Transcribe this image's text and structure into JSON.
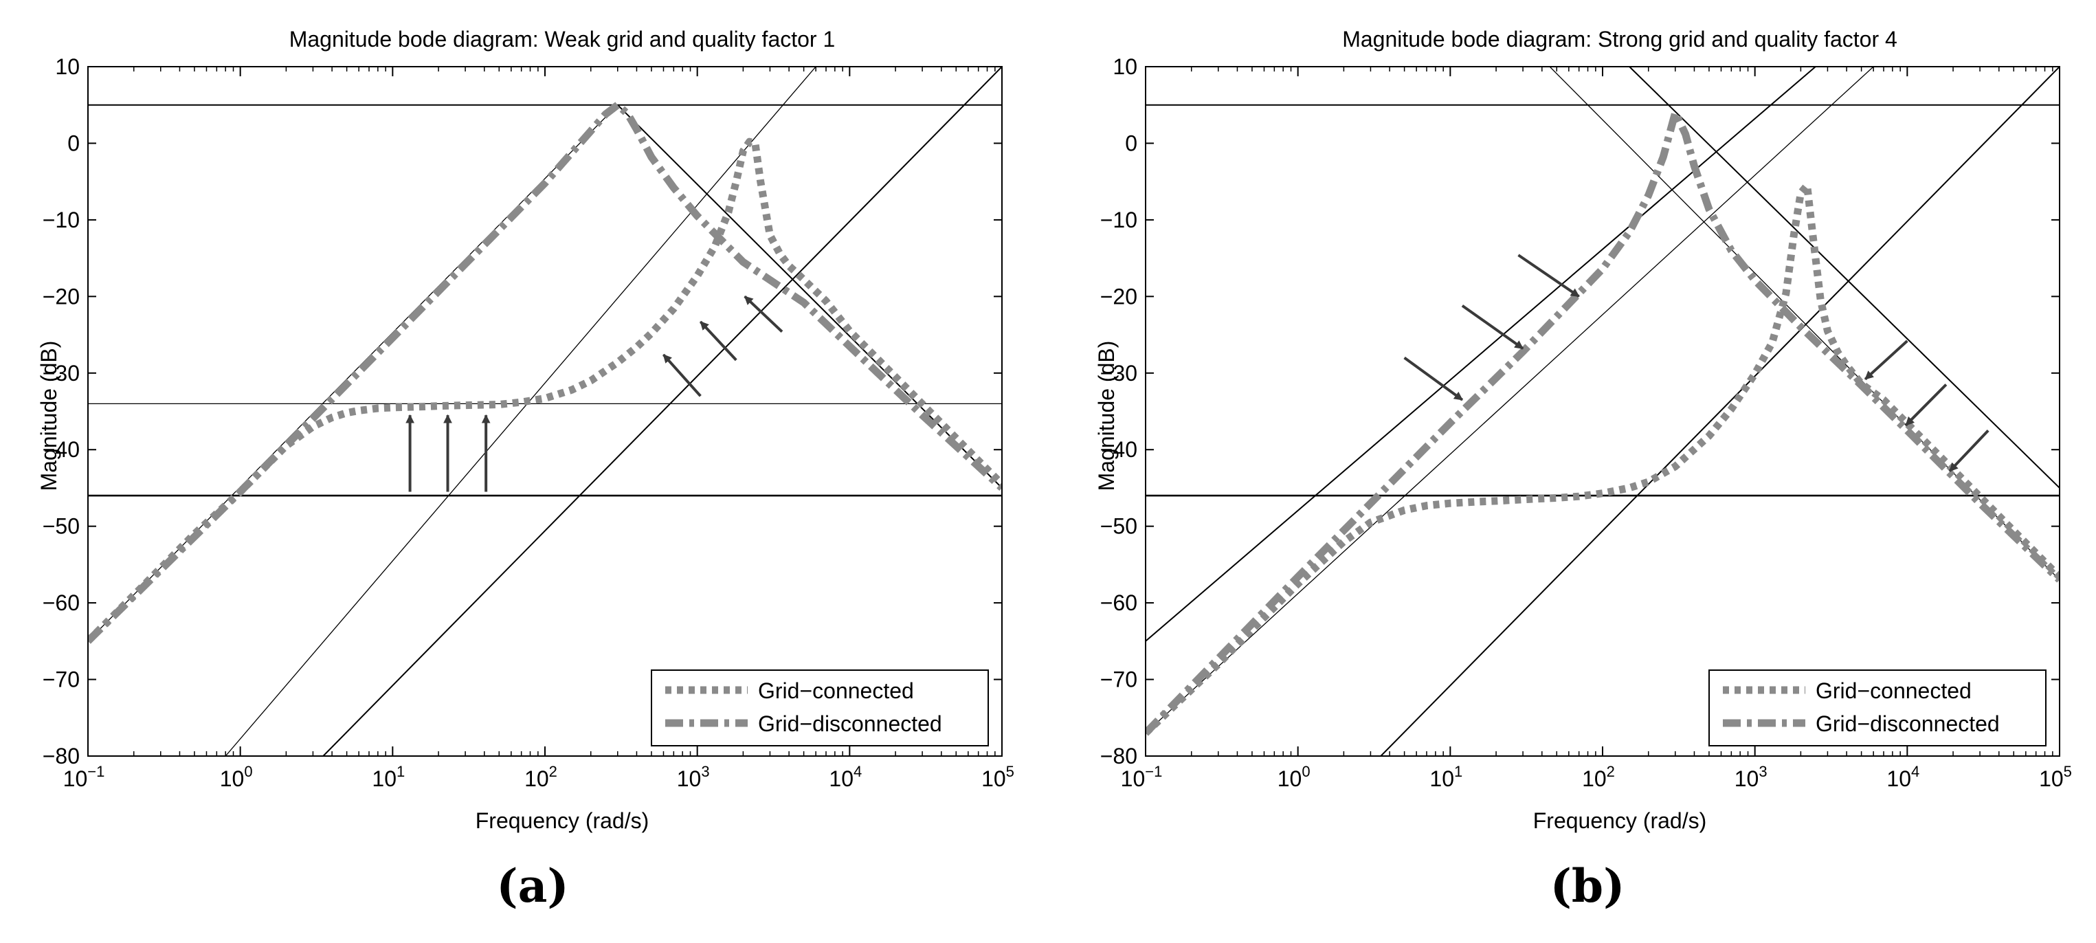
{
  "chart_data": [
    {
      "type": "line",
      "panel_label": "(a)",
      "title": "Magnitude bode diagram: Weak grid and quality factor 1",
      "xlabel": "Frequency (rad/s)",
      "ylabel": "Magnitude (dB)",
      "xscale": "log",
      "xlim": [
        0.1,
        100000
      ],
      "ylim": [
        -80,
        10
      ],
      "x_ticks": [
        {
          "base": "10",
          "exp": "−1"
        },
        {
          "base": "10",
          "exp": "0"
        },
        {
          "base": "10",
          "exp": "1"
        },
        {
          "base": "10",
          "exp": "2"
        },
        {
          "base": "10",
          "exp": "3"
        },
        {
          "base": "10",
          "exp": "4"
        },
        {
          "base": "10",
          "exp": "5"
        }
      ],
      "y_ticks": [
        "10",
        "0",
        "−10",
        "−20",
        "−30",
        "−40",
        "−50",
        "−60",
        "−70",
        "−80"
      ],
      "grid": false,
      "legend_position": "bottom-right",
      "series": [
        {
          "name": "Grid−connected",
          "style": "dotted",
          "color": "#8a8a8a",
          "x": [
            0.1,
            0.2,
            0.5,
            1,
            1.5,
            2,
            3,
            4,
            5,
            6,
            8,
            10,
            15,
            20,
            30,
            50,
            70,
            100,
            150,
            200,
            300,
            400,
            500,
            700,
            1000,
            1300,
            1600,
            1800,
            2000,
            2200,
            2400,
            2600,
            3000,
            3500,
            4000,
            5000,
            7000,
            10000,
            20000,
            50000,
            100000
          ],
          "y": [
            -65,
            -59,
            -51,
            -45.5,
            -42,
            -39.5,
            -37,
            -35.8,
            -35.2,
            -34.9,
            -34.6,
            -34.5,
            -34.4,
            -34.3,
            -34.2,
            -34.1,
            -33.8,
            -33.3,
            -32.2,
            -31,
            -28.6,
            -26.6,
            -24.8,
            -21.6,
            -17.3,
            -13.5,
            -9,
            -5,
            -1,
            0.2,
            0,
            -5,
            -12,
            -14.5,
            -16,
            -17.8,
            -20.6,
            -24.5,
            -30.5,
            -38.5,
            -44.5
          ]
        },
        {
          "name": "Grid−disconnected",
          "style": "dash-dot",
          "color": "#8a8a8a",
          "x": [
            0.1,
            1,
            10,
            100,
            200,
            250,
            300,
            350,
            400,
            500,
            700,
            1000,
            2000,
            5000,
            10000,
            30000,
            100000
          ],
          "y": [
            -65,
            -45.5,
            -25.4,
            -5.2,
            1.6,
            3.8,
            5,
            3.8,
            1.8,
            -1.8,
            -5.8,
            -9.5,
            -15.5,
            -20.8,
            -26.5,
            -35.5,
            -45
          ]
        }
      ],
      "reference_lines": [
        {
          "kind": "horizontal",
          "y": 5,
          "weight": "medium"
        },
        {
          "kind": "horizontal",
          "y": -34,
          "weight": "thin"
        },
        {
          "kind": "horizontal",
          "y": -46,
          "weight": "thick"
        },
        {
          "kind": "sloped",
          "x1": 0.1,
          "y1": -65,
          "x2": 300,
          "y2": 5,
          "weight": "thin"
        },
        {
          "kind": "sloped",
          "x1": 300,
          "y1": 5,
          "x2": 100000,
          "y2": -45,
          "weight": "medium"
        },
        {
          "kind": "sloped",
          "x1": 0.8,
          "y1": -80,
          "x2": 6000,
          "y2": 10,
          "weight": "thin"
        },
        {
          "kind": "sloped",
          "x1": 3.5,
          "y1": -80,
          "x2": 100000,
          "y2": 10,
          "weight": "medium"
        }
      ],
      "arrows": [
        {
          "x": 13,
          "y_from": -45.5,
          "y_to": -35.5
        },
        {
          "x": 23,
          "y_from": -45.5,
          "y_to": -35.5
        },
        {
          "x": 41,
          "y_from": -45.5,
          "y_to": -35.5
        },
        {
          "x_from": 1050,
          "y_from": -33,
          "x_to": 600,
          "y_to": -27.6
        },
        {
          "x_from": 1800,
          "y_from": -28.3,
          "x_to": 1050,
          "y_to": -23.3
        },
        {
          "x_from": 3600,
          "y_from": -24.6,
          "x_to": 2050,
          "y_to": -20
        }
      ]
    },
    {
      "type": "line",
      "panel_label": "(b)",
      "title": "Magnitude bode diagram: Strong grid and quality factor 4",
      "xlabel": "Frequency (rad/s)",
      "ylabel": "Magnitude (dB)",
      "xscale": "log",
      "xlim": [
        0.1,
        100000
      ],
      "ylim": [
        -80,
        10
      ],
      "x_ticks": [
        {
          "base": "10",
          "exp": "−1"
        },
        {
          "base": "10",
          "exp": "0"
        },
        {
          "base": "10",
          "exp": "1"
        },
        {
          "base": "10",
          "exp": "2"
        },
        {
          "base": "10",
          "exp": "3"
        },
        {
          "base": "10",
          "exp": "4"
        },
        {
          "base": "10",
          "exp": "5"
        }
      ],
      "y_ticks": [
        "10",
        "0",
        "−10",
        "−20",
        "−30",
        "−40",
        "−50",
        "−60",
        "−70",
        "−80"
      ],
      "grid": false,
      "legend_position": "bottom-right",
      "series": [
        {
          "name": "Grid−connected",
          "style": "dotted",
          "color": "#8a8a8a",
          "x": [
            0.1,
            0.3,
            0.5,
            1,
            2,
            3,
            5,
            7,
            10,
            15,
            20,
            30,
            50,
            70,
            100,
            150,
            200,
            300,
            500,
            700,
            1000,
            1300,
            1600,
            1800,
            2000,
            2200,
            2400,
            2700,
            3000,
            3500,
            4000,
            5000,
            7000,
            10000,
            20000,
            50000,
            100000
          ],
          "y": [
            -77,
            -68,
            -63.5,
            -57.5,
            -52,
            -49.5,
            -47.9,
            -47.3,
            -47,
            -46.8,
            -46.7,
            -46.5,
            -46.3,
            -46.1,
            -45.7,
            -45,
            -44.2,
            -42.2,
            -38.2,
            -34.7,
            -30.1,
            -26,
            -19.6,
            -12,
            -6.5,
            -5.5,
            -12,
            -20.5,
            -24.5,
            -27.3,
            -29,
            -31.4,
            -33.5,
            -36.6,
            -42.6,
            -50.6,
            -56.6
          ]
        },
        {
          "name": "Grid−disconnected",
          "style": "dash-dot",
          "color": "#8a8a8a",
          "x": [
            0.1,
            1,
            10,
            30,
            100,
            150,
            200,
            250,
            300,
            350,
            400,
            500,
            700,
            1000,
            2000,
            5000,
            10000,
            30000,
            100000
          ],
          "y": [
            -77,
            -56.6,
            -36.5,
            -27.2,
            -16.4,
            -11.6,
            -6.8,
            -1.8,
            4,
            1.2,
            -3,
            -8.6,
            -14,
            -17.9,
            -24,
            -31.6,
            -37.5,
            -47,
            -57
          ]
        }
      ],
      "reference_lines": [
        {
          "kind": "horizontal",
          "y": 5,
          "weight": "medium"
        },
        {
          "kind": "horizontal",
          "y": -46,
          "weight": "thick"
        },
        {
          "kind": "sloped",
          "x1": 0.1,
          "y1": -65,
          "x2": 2500,
          "y2": 10,
          "weight": "medium"
        },
        {
          "kind": "sloped",
          "x1": 0.1,
          "y1": -77,
          "x2": 6000,
          "y2": 10,
          "weight": "thin"
        },
        {
          "kind": "sloped",
          "x1": 3.5,
          "y1": -80,
          "x2": 100000,
          "y2": 10,
          "weight": "medium"
        },
        {
          "kind": "sloped",
          "x1": 45,
          "y1": 10,
          "x2": 100000,
          "y2": -57,
          "weight": "thin"
        },
        {
          "kind": "sloped",
          "x1": 150,
          "y1": 10,
          "x2": 100000,
          "y2": -45,
          "weight": "medium"
        }
      ],
      "arrows": [
        {
          "x_from": 5,
          "y_from": -28,
          "x_to": 12,
          "y_to": -33.5
        },
        {
          "x_from": 12,
          "y_from": -21.2,
          "x_to": 30,
          "y_to": -26.8
        },
        {
          "x_from": 28,
          "y_from": -14.6,
          "x_to": 70,
          "y_to": -20
        },
        {
          "x_from": 10000,
          "y_from": -25.8,
          "x_to": 5300,
          "y_to": -30.8
        },
        {
          "x_from": 18000,
          "y_from": -31.5,
          "x_to": 9800,
          "y_to": -36.8
        },
        {
          "x_from": 34000,
          "y_from": -37.5,
          "x_to": 19000,
          "y_to": -42.8
        }
      ]
    }
  ]
}
